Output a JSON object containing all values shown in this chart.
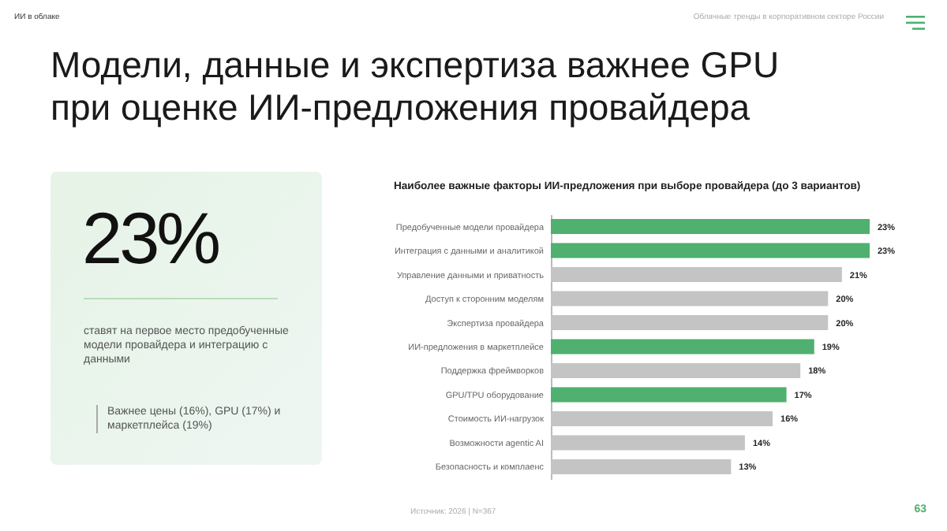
{
  "chart_data": {
    "type": "bar",
    "orientation": "horizontal",
    "title": "Модели, данные и экспертиза важнее GPU при оценке ИИ-предложения провайдера",
    "subtitle": "Наиболее важные факторы ИИ-предложения при выборе провайдера (до 3 вариантов)",
    "categories": [
      "Предобученные модели провайдера",
      "Интеграция с данными и аналитикой",
      "Управление данными и приватность",
      "Доступ к сторонним моделям",
      "Экспертиза провайдера",
      "ИИ-предложения в маркетплейсе",
      "Поддержка фреймворков",
      "GPU/TPU оборудование",
      "Стоимость ИИ-нагрузок",
      "Возможности agentic AI",
      "Безопасность и комплаенс"
    ],
    "values": [
      23,
      23,
      21,
      20,
      20,
      19,
      18,
      17,
      16,
      14,
      13
    ],
    "colors": [
      "#4fb06f",
      "#4fb06f",
      "#c4c4c4",
      "#c4c4c4",
      "#c4c4c4",
      "#4fb06f",
      "#c4c4c4",
      "#4fb06f",
      "#c4c4c4",
      "#c4c4c4",
      "#c4c4c4"
    ],
    "value_labels": [
      "23%",
      "23%",
      "21%",
      "20%",
      "20%",
      "19%",
      "18%",
      "17%",
      "16%",
      "14%",
      "13%"
    ],
    "annotations": [
      "ИИ в облаке",
      "Облачные тренды в корпоративном секторе России",
      "23%",
      "ставят на первое место предобученные модели провайдера и интеграцию с данными",
      "Важнее цены (16%), GPU (17%) и маркетплейса (19%)",
      "Источник: 2026 | N=367",
      "63"
    ]
  }
}
